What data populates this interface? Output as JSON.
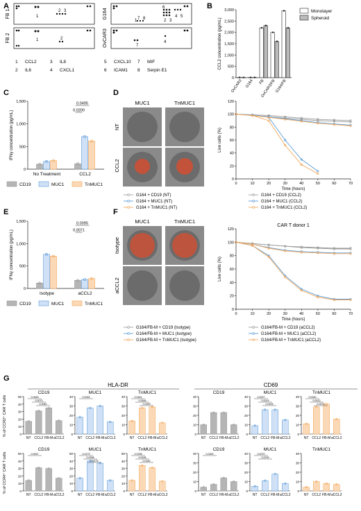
{
  "panels": {
    "A": {
      "label": "A",
      "blots": [
        {
          "name": "FB 1",
          "nums": [
            "1",
            "2",
            "3"
          ]
        },
        {
          "name": "FB 2",
          "nums": [
            "1",
            "2"
          ]
        },
        {
          "name": "G164",
          "nums": [
            "6",
            "4",
            "5",
            "2",
            "3",
            "7",
            "8",
            "1"
          ]
        },
        {
          "name": "OvCAR3",
          "nums": [
            "7",
            "4"
          ]
        }
      ],
      "legend": [
        [
          "1",
          "CCL2"
        ],
        [
          "2",
          "IL6"
        ],
        [
          "3",
          "IL8"
        ],
        [
          "4",
          "CXCL1"
        ],
        [
          "5",
          "CXCL10"
        ],
        [
          "6",
          "ICAM1"
        ],
        [
          "7",
          "MIF"
        ],
        [
          "8",
          "Serpin E1"
        ]
      ]
    },
    "B": {
      "label": "B"
    },
    "C": {
      "label": "C"
    },
    "D": {
      "label": "D",
      "col_labels": [
        "MUC1",
        "TnMUC1"
      ],
      "row_labels": [
        "NT",
        "CCL2"
      ]
    },
    "E": {
      "label": "E"
    },
    "F": {
      "label": "F",
      "col_labels": [
        "MUC1",
        "TnMUC1"
      ],
      "row_labels": [
        "Isotype",
        "aCCL2"
      ]
    },
    "G": {
      "label": "G",
      "group_hla": "HLA-DR",
      "group_cd69": "CD69"
    }
  },
  "colors": {
    "cd19": "#b5b5b5",
    "muc1": "#5b9bd5",
    "muc1_fill": "#cfe0f7",
    "tnmuc1": "#f2a65a",
    "tnmuc1_fill": "#fbd9b6",
    "gray": "#9a9a9a",
    "red": "#e04a2a"
  },
  "chart_data": [
    {
      "id": "B",
      "type": "bar",
      "ylabel": "CCL2 concentration (pg/mL)",
      "ylim": [
        0,
        3000
      ],
      "yticks": [
        "0",
        "500",
        "1,000",
        "1,500",
        "2,000",
        "2,500",
        "3,000"
      ],
      "categories": [
        "OvCAR3",
        "G164",
        "FB",
        "OvCAR3/FB",
        "G164/FB"
      ],
      "series": [
        {
          "name": "Monolayer",
          "values": [
            10,
            10,
            2200,
            2000,
            2950
          ]
        },
        {
          "name": "Spheroid",
          "values": [
            10,
            10,
            2300,
            1600,
            2200
          ]
        }
      ]
    },
    {
      "id": "C",
      "type": "bar",
      "ylabel": "IFNγ concentration (pg/mL)",
      "ylim": [
        0,
        1500
      ],
      "yticks": [
        "0",
        "500",
        "1,000",
        "1,500"
      ],
      "categories": [
        "No Treatment",
        "CCL2"
      ],
      "series": [
        {
          "name": "CD19",
          "values": [
            110,
            120
          ]
        },
        {
          "name": "MUC1",
          "values": [
            170,
            720
          ]
        },
        {
          "name": "TnMUC1",
          "values": [
            190,
            620
          ]
        }
      ],
      "annotations": [
        "0.0200",
        "0.0495"
      ]
    },
    {
      "id": "D",
      "type": "line",
      "xlabel": "Time (hours)",
      "ylabel": "Live cells (%)",
      "xlim": [
        0,
        70
      ],
      "ylim": [
        0,
        120
      ],
      "xticks": [
        "0",
        "10",
        "20",
        "30",
        "40",
        "50",
        "60",
        "70"
      ],
      "yticks": [
        "0",
        "20",
        "40",
        "60",
        "80",
        "100",
        "120"
      ],
      "x": [
        0,
        10,
        20,
        30,
        40,
        50,
        60,
        70
      ],
      "series": [
        {
          "name": "G164 + CD19 (NT)",
          "values": [
            100,
            99,
            98,
            96,
            94,
            92,
            91,
            90
          ]
        },
        {
          "name": "G164 + CD19 (CCL2)",
          "values": [
            100,
            98,
            96,
            94,
            92,
            90,
            89,
            88
          ]
        },
        {
          "name": "G164 + MUC1 (NT)",
          "values": [
            100,
            98,
            96,
            93,
            90,
            87,
            85,
            83
          ]
        },
        {
          "name": "G164 + MUC1 (CCL2)",
          "values": [
            100,
            99,
            95,
            60,
            30,
            12,
            null,
            null
          ]
        },
        {
          "name": "G164 + TnMUC1 (NT)",
          "values": [
            100,
            98,
            95,
            92,
            89,
            86,
            84,
            82
          ]
        },
        {
          "name": "G164 + TnMUC1 (CCL2)",
          "values": [
            100,
            98,
            90,
            52,
            22,
            8,
            null,
            null
          ]
        }
      ]
    },
    {
      "id": "E",
      "type": "bar",
      "ylabel": "IFNγ concentration (pg/mL)",
      "ylim": [
        0,
        1500
      ],
      "yticks": [
        "0",
        "500",
        "1,000",
        "1,500"
      ],
      "categories": [
        "Isotype",
        "aCCL2"
      ],
      "series": [
        {
          "name": "CD19",
          "values": [
            120,
            180
          ]
        },
        {
          "name": "MUC1",
          "values": [
            760,
            200
          ]
        },
        {
          "name": "TnMUC1",
          "values": [
            720,
            220
          ]
        }
      ],
      "annotations": [
        "0.0071",
        "0.0095"
      ]
    },
    {
      "id": "F",
      "type": "line",
      "title": "CAR T donor 1",
      "xlabel": "Time (hours)",
      "ylabel": "Live cells (%)",
      "xlim": [
        0,
        70
      ],
      "ylim": [
        0,
        120
      ],
      "xticks": [
        "0",
        "10",
        "20",
        "30",
        "40",
        "50",
        "60",
        "70"
      ],
      "yticks": [
        "0",
        "20",
        "40",
        "60",
        "80",
        "100",
        "120"
      ],
      "x": [
        0,
        10,
        20,
        30,
        40,
        50,
        60,
        70
      ],
      "series": [
        {
          "name": "G164/FB-M + CD19 (Isotype)",
          "values": [
            100,
            98,
            96,
            94,
            92,
            91,
            90,
            90
          ]
        },
        {
          "name": "G164/FB-M + CD19 (aCCL2)",
          "values": [
            100,
            98,
            96,
            94,
            93,
            92,
            91,
            91
          ]
        },
        {
          "name": "G164/FB-M + MUC1 (Isotype)",
          "values": [
            100,
            95,
            80,
            50,
            30,
            20,
            15,
            15
          ]
        },
        {
          "name": "G164/FB-M + MUC1 (aCCL2)",
          "values": [
            100,
            97,
            92,
            88,
            86,
            85,
            84,
            84
          ]
        },
        {
          "name": "G164/FB-M + TnMUC1 (Isotype)",
          "values": [
            100,
            95,
            78,
            48,
            28,
            18,
            14,
            14
          ]
        },
        {
          "name": "G164/FB-M + TnMUC1 (aCCL2)",
          "values": [
            100,
            97,
            91,
            87,
            85,
            84,
            83,
            83
          ]
        }
      ]
    },
    {
      "id": "G",
      "type": "bar",
      "categories": [
        "NT",
        "CCL2",
        "FB-M",
        "aCCL2"
      ],
      "ylabel_top": "% of CCR2⁺ CAR T cells",
      "ylabel_bottom": "% of CCR4⁺ CAR T cells",
      "subplots": [
        {
          "title": "CD19",
          "row": 0,
          "col": 0,
          "ylim": [
            0,
            50
          ],
          "yticks": [
            "0",
            "10",
            "20",
            "30",
            "40",
            "50"
          ],
          "values": [
            17,
            31,
            35,
            18
          ],
          "color": "cd19",
          "pvals": [
            "0.0545",
            "0.0073",
            "0.0082"
          ]
        },
        {
          "title": "MUC1",
          "row": 0,
          "col": 1,
          "ylim": [
            0,
            40
          ],
          "yticks": [
            "0",
            "10",
            "20",
            "30",
            "40"
          ],
          "values": [
            18,
            28,
            30,
            13
          ],
          "color": "muc1",
          "pvals": [
            "0.0093"
          ]
        },
        {
          "title": "TnMUC1",
          "row": 0,
          "col": 2,
          "ylim": [
            0,
            40
          ],
          "yticks": [
            "0",
            "10",
            "20",
            "30",
            "40"
          ],
          "values": [
            14,
            28,
            29,
            12
          ],
          "color": "tnmuc1",
          "pvals": [
            "0.0461",
            "0.0546",
            "0.0399"
          ]
        },
        {
          "title": "CD19",
          "row": 0,
          "col": 3,
          "ylim": [
            0,
            40
          ],
          "yticks": [
            "0",
            "10",
            "20",
            "30",
            "40"
          ],
          "values": [
            10,
            23,
            23,
            10
          ],
          "color": "cd19",
          "pvals": []
        },
        {
          "title": "MUC1",
          "row": 0,
          "col": 4,
          "ylim": [
            0,
            40
          ],
          "yticks": [
            "0",
            "10",
            "20",
            "30",
            "40"
          ],
          "values": [
            9,
            26,
            26,
            15
          ],
          "color": "muc1",
          "pvals": [
            "0.0027",
            "0.0019",
            "0.0205"
          ]
        },
        {
          "title": "TnMUC1",
          "row": 0,
          "col": 5,
          "ylim": [
            0,
            40
          ],
          "yticks": [
            "0",
            "10",
            "20",
            "30",
            "40"
          ],
          "values": [
            11,
            29,
            32,
            16
          ],
          "color": "tnmuc1",
          "pvals": [
            "0.0040",
            "0.0013",
            "0.0072"
          ]
        },
        {
          "title": "CD19",
          "row": 1,
          "col": 0,
          "ylim": [
            0,
            50
          ],
          "yticks": [
            "0",
            "10",
            "20",
            "30",
            "40",
            "50"
          ],
          "values": [
            14,
            31,
            30,
            17
          ],
          "color": "cd19",
          "pvals": [
            "0.0637"
          ]
        },
        {
          "title": "MUC1",
          "row": 1,
          "col": 1,
          "ylim": [
            0,
            50
          ],
          "yticks": [
            "0",
            "10",
            "20",
            "30",
            "40",
            "50"
          ],
          "values": [
            17,
            40,
            37,
            14
          ],
          "color": "muc1",
          "pvals": [
            "0.0179",
            "0.0258",
            "0.0175"
          ]
        },
        {
          "title": "TnMUC1",
          "row": 1,
          "col": 2,
          "ylim": [
            0,
            50
          ],
          "yticks": [
            "0",
            "10",
            "20",
            "30",
            "40",
            "50"
          ],
          "values": [
            14,
            34,
            31,
            13
          ],
          "color": "tnmuc1",
          "pvals": [
            "0.0298",
            "0.0436",
            "0.0160"
          ]
        },
        {
          "title": "CD19",
          "row": 1,
          "col": 3,
          "ylim": [
            0,
            40
          ],
          "yticks": [
            "0",
            "10",
            "20",
            "30",
            "40"
          ],
          "values": [
            4,
            7,
            14,
            10
          ],
          "color": "cd19",
          "pvals": [
            "0.0263"
          ]
        },
        {
          "title": "MUC1",
          "row": 1,
          "col": 4,
          "ylim": [
            0,
            40
          ],
          "yticks": [
            "0",
            "10",
            "20",
            "30",
            "40"
          ],
          "values": [
            5,
            11,
            18,
            8
          ],
          "color": "muc1",
          "pvals": [
            "0.0070",
            "0.0239"
          ]
        },
        {
          "title": "TnMUC1",
          "row": 1,
          "col": 5,
          "ylim": [
            0,
            40
          ],
          "yticks": [
            "0",
            "10",
            "20",
            "30",
            "40"
          ],
          "values": [
            4,
            10,
            8,
            7
          ],
          "color": "tnmuc1",
          "pvals": []
        }
      ]
    }
  ]
}
